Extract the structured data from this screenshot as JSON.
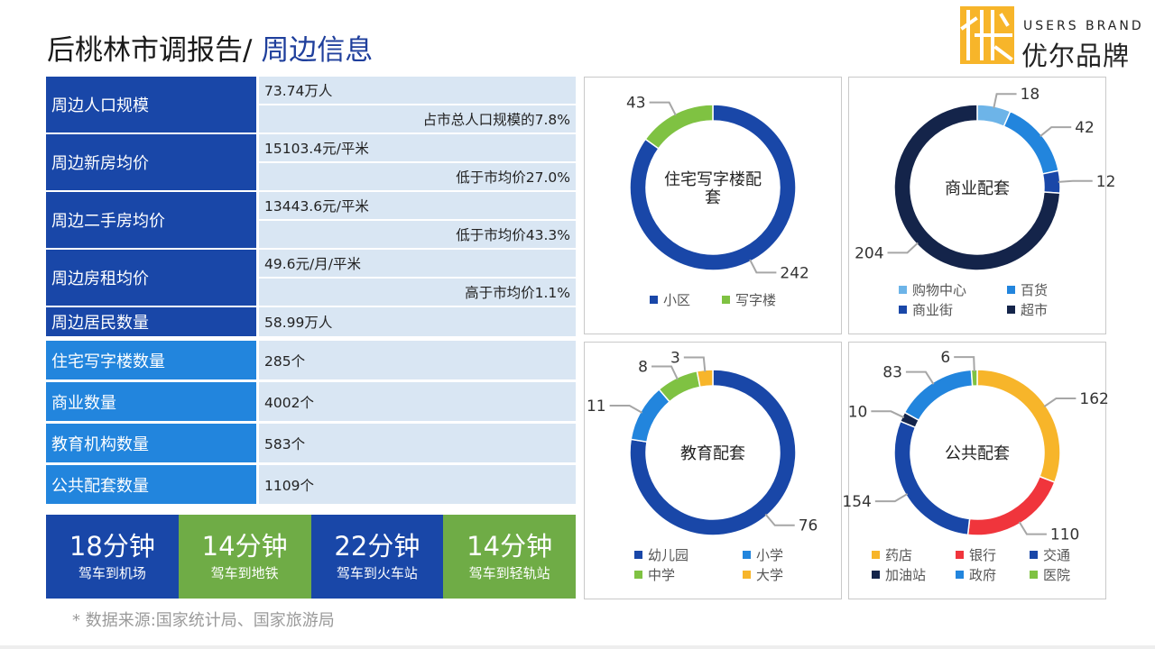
{
  "title": {
    "main": "后桃林市调报告/ ",
    "accent": "周边信息"
  },
  "logo": {
    "en": "USERS BRAND",
    "cn": "优尔品牌"
  },
  "table_top": [
    {
      "label": "周边人口规模",
      "values": [
        {
          "text": "73.74万人",
          "align": "left"
        },
        {
          "text": "占市总人口规模的7.8%",
          "align": "right"
        }
      ]
    },
    {
      "label": "周边新房均价",
      "values": [
        {
          "text": "15103.4元/平米",
          "align": "left"
        },
        {
          "text": "低于市均价27.0%",
          "align": "right"
        }
      ]
    },
    {
      "label": "周边二手房均价",
      "values": [
        {
          "text": "13443.6元/平米",
          "align": "left"
        },
        {
          "text": "低于市均价43.3%",
          "align": "right"
        }
      ]
    },
    {
      "label": "周边房租均价",
      "values": [
        {
          "text": "49.6元/月/平米",
          "align": "left"
        },
        {
          "text": "高于市均价1.1%",
          "align": "right"
        }
      ]
    },
    {
      "label": "周边居民数量",
      "values": [
        {
          "text": "58.99万人",
          "align": "left"
        }
      ]
    }
  ],
  "table_bottom": [
    {
      "label": "住宅写字楼数量",
      "value": "285个"
    },
    {
      "label": "商业数量",
      "value": "4002个"
    },
    {
      "label": "教育机构数量",
      "value": "583个"
    },
    {
      "label": "公共配套数量",
      "value": "1109个"
    }
  ],
  "tiles": [
    {
      "big": "18分钟",
      "small": "驾车到机场",
      "color": "#1947a8"
    },
    {
      "big": "14分钟",
      "small": "驾车到地铁",
      "color": "#6fac46"
    },
    {
      "big": "22分钟",
      "small": "驾车到火车站",
      "color": "#1947a8"
    },
    {
      "big": "14分钟",
      "small": "驾车到轻轨站",
      "color": "#6fac46"
    }
  ],
  "colors": {
    "label_dark": "#1947a8",
    "label_light": "#2285dd",
    "value_bg": "#d9e6f3"
  },
  "source": "* 数据来源:国家统计局、国家旅游局",
  "chart_data": [
    {
      "type": "pie",
      "donut": true,
      "title": "住宅写字楼配套",
      "categories": [
        "小区",
        "写字楼"
      ],
      "values": [
        242,
        43
      ],
      "colors": [
        "#1947a8",
        "#7fc242"
      ],
      "legend": "bottom"
    },
    {
      "type": "pie",
      "donut": true,
      "title": "商业配套",
      "categories": [
        "购物中心",
        "百货",
        "商业街",
        "超市"
      ],
      "values": [
        18,
        42,
        12,
        204
      ],
      "colors": [
        "#6db4e8",
        "#2285dd",
        "#1947a8",
        "#14244a"
      ],
      "legend": "bottom"
    },
    {
      "type": "pie",
      "donut": true,
      "title": "教育配套",
      "categories": [
        "幼儿园",
        "小学",
        "中学",
        "大学"
      ],
      "values": [
        76,
        11,
        8,
        3
      ],
      "colors": [
        "#1947a8",
        "#2285dd",
        "#7fc242",
        "#f7b52a"
      ],
      "legend": "bottom"
    },
    {
      "type": "pie",
      "donut": true,
      "title": "公共配套",
      "categories": [
        "药店",
        "银行",
        "交通",
        "加油站",
        "政府",
        "医院"
      ],
      "values": [
        162,
        110,
        154,
        10,
        83,
        6
      ],
      "colors": [
        "#f7b52a",
        "#f0353c",
        "#1947a8",
        "#14244a",
        "#2285dd",
        "#7fc242"
      ],
      "legend": "bottom"
    }
  ]
}
